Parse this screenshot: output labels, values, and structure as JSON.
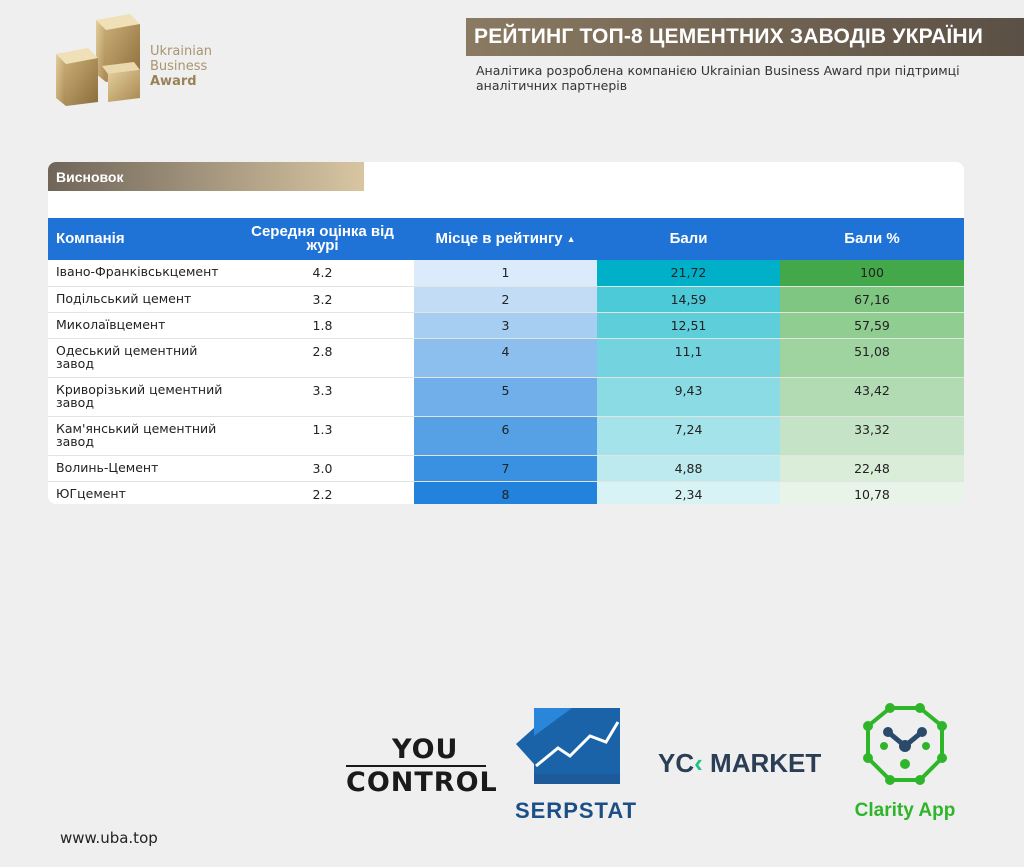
{
  "header": {
    "logo_text": [
      "Ukrainian",
      "Business"
    ],
    "logo_bold": "Award",
    "title": "РЕЙТИНГ ТОП-8 ЦЕМЕНТНИХ ЗАВОДІВ УКРАЇНИ",
    "subtitle": "Аналітика розроблена компанією Ukrainian Business Award при підтримці аналітичних партнерів"
  },
  "section": {
    "label": "Висновок"
  },
  "table": {
    "columns": [
      "Компанія",
      "Середня оцінка від журі",
      "Місце в рейтингу",
      "Бали",
      "Бали %"
    ],
    "sort_indicator": "▲",
    "rows": [
      {
        "company": "Івано-Франківськцемент",
        "jury": "4.2",
        "place": "1",
        "points": "21,72",
        "percent": "100"
      },
      {
        "company": "Подільський цемент",
        "jury": "3.2",
        "place": "2",
        "points": "14,59",
        "percent": "67,16"
      },
      {
        "company": "Миколаївцемент",
        "jury": "1.8",
        "place": "3",
        "points": "12,51",
        "percent": "57,59"
      },
      {
        "company": "Одеський цементний завод",
        "jury": "2.8",
        "place": "4",
        "points": "11,1",
        "percent": "51,08"
      },
      {
        "company": "Криворізький цементний завод",
        "jury": "3.3",
        "place": "5",
        "points": "9,43",
        "percent": "43,42"
      },
      {
        "company": "Кам'янський цементний завод",
        "jury": "1.3",
        "place": "6",
        "points": "7,24",
        "percent": "33,32"
      },
      {
        "company": "Волинь-Цемент",
        "jury": "3.0",
        "place": "7",
        "points": "4,88",
        "percent": "22,48"
      },
      {
        "company": "ЮГцемент",
        "jury": "2.2",
        "place": "8",
        "points": "2,34",
        "percent": "10,78"
      }
    ],
    "colors": {
      "header_bg": "#1f73d6",
      "place_scale": [
        "#dcebfb",
        "#c2dcf6",
        "#a6cdf2",
        "#8cbeee",
        "#71afea",
        "#56a0e6",
        "#3a90e1",
        "#2282dc"
      ],
      "points_scale": [
        "#00b0c8",
        "#4ccad8",
        "#5fcedb",
        "#73d3df",
        "#8bdbe4",
        "#a4e3ea",
        "#bdeaef",
        "#d8f3f6"
      ],
      "percent_scale": [
        "#43a84a",
        "#80c683",
        "#8fcd91",
        "#9fd4a1",
        "#b2dbb3",
        "#c5e3c6",
        "#d9edd9",
        "#e8f4e8"
      ]
    }
  },
  "partners": {
    "youcontrol": [
      "YOU",
      "CONTROL"
    ],
    "serpstat": "SERPSTAT",
    "ycmarket": [
      "YC",
      "MARKET"
    ],
    "clarity": "Clarity App"
  },
  "footer": {
    "url": "www.uba.top"
  }
}
